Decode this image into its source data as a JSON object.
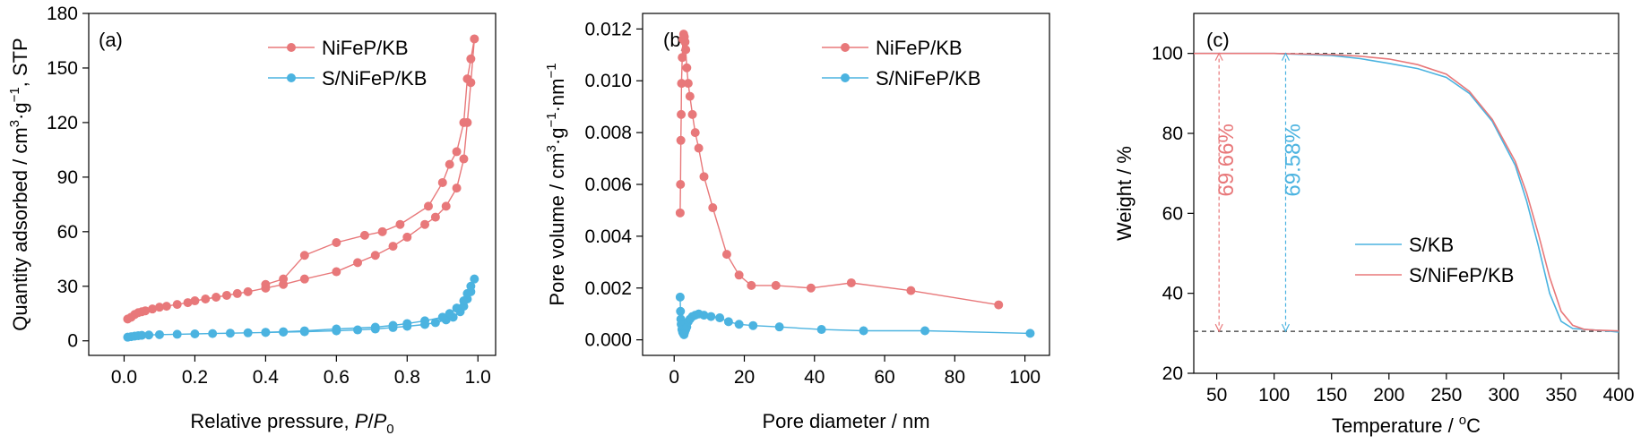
{
  "colors": {
    "red": "#e8787a",
    "blue": "#4bb3e0",
    "dash": "#333333"
  },
  "chart_data": [
    {
      "type": "line",
      "panel_label": "(a)",
      "xlabel": "Relative pressure, P/P0",
      "ylabel": "Quantity adsorbed / cm3·g−1, STP",
      "xlim": [
        -0.1,
        1.05
      ],
      "ylim": [
        -8,
        180
      ],
      "xticks": [
        0.0,
        0.2,
        0.4,
        0.6,
        0.8,
        1.0
      ],
      "xtick_labels": [
        "0.0",
        "0.2",
        "0.4",
        "0.6",
        "0.8",
        "1.0"
      ],
      "yticks": [
        0,
        30,
        60,
        90,
        120,
        150,
        180
      ],
      "ytick_labels": [
        "0",
        "30",
        "60",
        "90",
        "120",
        "150",
        "180"
      ],
      "legend_position": "top-right",
      "series": [
        {
          "name": "NiFeP/KB",
          "color": "#e8787a",
          "x": [
            0.01,
            0.02,
            0.03,
            0.04,
            0.05,
            0.06,
            0.08,
            0.1,
            0.12,
            0.15,
            0.18,
            0.2,
            0.23,
            0.26,
            0.29,
            0.32,
            0.35,
            0.4,
            0.45,
            0.51,
            0.6,
            0.66,
            0.71,
            0.76,
            0.8,
            0.85,
            0.88,
            0.91,
            0.94,
            0.96,
            0.97,
            0.98,
            0.99,
            0.98,
            0.97,
            0.96,
            0.94,
            0.92,
            0.9,
            0.86,
            0.78,
            0.73,
            0.68,
            0.6,
            0.51,
            0.45,
            0.4
          ],
          "y": [
            12,
            13,
            14.5,
            15.5,
            16,
            16.5,
            17.5,
            18.5,
            19,
            20,
            21,
            22,
            23,
            24,
            25,
            26,
            27,
            29,
            31,
            34,
            38,
            43,
            47,
            52,
            57,
            64,
            68,
            74,
            84,
            100,
            120,
            142,
            166,
            155,
            144,
            120,
            104,
            97,
            87,
            74,
            64,
            60,
            58,
            54,
            47,
            34,
            31
          ]
        },
        {
          "name": "S/NiFeP/KB",
          "color": "#4bb3e0",
          "x": [
            0.01,
            0.02,
            0.03,
            0.04,
            0.05,
            0.07,
            0.1,
            0.15,
            0.2,
            0.25,
            0.3,
            0.35,
            0.4,
            0.45,
            0.51,
            0.6,
            0.66,
            0.71,
            0.76,
            0.8,
            0.85,
            0.88,
            0.91,
            0.93,
            0.95,
            0.96,
            0.97,
            0.98,
            0.99,
            0.98,
            0.97,
            0.96,
            0.94,
            0.92,
            0.9,
            0.85,
            0.8,
            0.76,
            0.71,
            0.6,
            0.51,
            0.45,
            0.4
          ],
          "y": [
            2,
            2.3,
            2.6,
            2.8,
            3,
            3.2,
            3.4,
            3.6,
            3.8,
            4,
            4.2,
            4.4,
            4.6,
            4.8,
            5,
            5.5,
            6,
            6.5,
            7.3,
            8,
            9,
            10,
            11.5,
            13,
            16,
            19,
            23,
            27,
            34,
            30,
            26,
            22,
            18,
            15,
            13,
            11,
            9.5,
            8.5,
            7.5,
            6.5,
            5.5,
            5,
            4.7
          ]
        }
      ]
    },
    {
      "type": "line",
      "panel_label": "(b)",
      "xlabel": "Pore diameter / nm",
      "ylabel": "Pore volume / cm3·g−1·nm−1",
      "xlim": [
        -9,
        107
      ],
      "ylim": [
        -0.0006,
        0.0126
      ],
      "xticks": [
        0,
        20,
        40,
        60,
        80,
        100
      ],
      "xtick_labels": [
        "0",
        "20",
        "40",
        "60",
        "80",
        "100"
      ],
      "yticks": [
        0.0,
        0.002,
        0.004,
        0.006,
        0.008,
        0.01,
        0.012
      ],
      "ytick_labels": [
        "0.000",
        "0.002",
        "0.004",
        "0.006",
        "0.008",
        "0.010",
        "0.012"
      ],
      "legend_position": "top-right",
      "series": [
        {
          "name": "NiFeP/KB",
          "color": "#e8787a",
          "x": [
            1.7,
            1.8,
            1.9,
            2.0,
            2.1,
            2.3,
            2.5,
            2.7,
            2.9,
            3.1,
            3.3,
            3.6,
            4.0,
            4.5,
            5.2,
            6.0,
            7.0,
            8.5,
            11.0,
            15.0,
            18.5,
            22.0,
            29.0,
            39.0,
            50.5,
            67.5,
            92.5
          ],
          "y": [
            0.0049,
            0.006,
            0.0077,
            0.0087,
            0.0099,
            0.0109,
            0.0116,
            0.0118,
            0.0117,
            0.0115,
            0.0112,
            0.0105,
            0.0099,
            0.0094,
            0.0087,
            0.008,
            0.0074,
            0.0063,
            0.0051,
            0.0033,
            0.0025,
            0.0021,
            0.0021,
            0.002,
            0.0022,
            0.0019,
            0.00135
          ]
        },
        {
          "name": "S/NiFeP/KB",
          "color": "#4bb3e0",
          "x": [
            1.7,
            1.8,
            1.9,
            2.0,
            2.2,
            2.4,
            2.6,
            2.8,
            3.0,
            3.3,
            3.6,
            4.0,
            4.5,
            5.2,
            6.0,
            7.0,
            8.5,
            10.5,
            13.0,
            15.5,
            18.5,
            22.5,
            30.0,
            42.0,
            54.0,
            71.5,
            101.5
          ],
          "y": [
            0.00165,
            0.0011,
            0.0008,
            0.0006,
            0.0004,
            0.0003,
            0.00025,
            0.0002,
            0.0003,
            0.0004,
            0.0005,
            0.0007,
            0.0008,
            0.0009,
            0.00095,
            0.001,
            0.00095,
            0.0009,
            0.00085,
            0.0007,
            0.0006,
            0.00055,
            0.0005,
            0.0004,
            0.00035,
            0.00035,
            0.00025
          ]
        }
      ]
    },
    {
      "type": "line",
      "panel_label": "(c)",
      "xlabel": "Temperature / oC",
      "ylabel": "Weight / %",
      "xlim": [
        30,
        400
      ],
      "ylim": [
        20,
        110
      ],
      "xticks": [
        50,
        100,
        150,
        200,
        250,
        300,
        350,
        400
      ],
      "xtick_labels": [
        "50",
        "100",
        "150",
        "200",
        "250",
        "300",
        "350",
        "400"
      ],
      "yticks": [
        20,
        40,
        60,
        80,
        100
      ],
      "ytick_labels": [
        "20",
        "40",
        "60",
        "80",
        "100"
      ],
      "legend_position": "center-right",
      "reference_lines": [
        100,
        30.5
      ],
      "annotations": [
        {
          "text": "69.66%",
          "x": 52,
          "color": "#e8787a"
        },
        {
          "text": "69.58%",
          "x": 110,
          "color": "#4bb3e0"
        }
      ],
      "series": [
        {
          "name": "S/KB",
          "color": "#4bb3e0",
          "x": [
            30,
            100,
            150,
            175,
            200,
            225,
            250,
            270,
            290,
            310,
            320,
            330,
            340,
            350,
            360,
            370,
            380,
            390,
            400
          ],
          "y": [
            100,
            100,
            99.5,
            98.7,
            97.5,
            96.2,
            94.0,
            90.0,
            83.0,
            72.0,
            63.0,
            52.0,
            40.0,
            33.0,
            31.2,
            31.0,
            30.8,
            30.6,
            30.3
          ]
        },
        {
          "name": "S/NiFeP/KB",
          "color": "#e8787a",
          "x": [
            30,
            100,
            150,
            175,
            200,
            225,
            250,
            270,
            290,
            310,
            320,
            330,
            340,
            350,
            360,
            370,
            380,
            390,
            400
          ],
          "y": [
            100,
            100,
            99.7,
            99.3,
            98.6,
            97.2,
            94.8,
            90.5,
            83.5,
            73.0,
            65.0,
            55.0,
            44.0,
            35.5,
            32.0,
            31.0,
            30.8,
            30.7,
            30.6
          ]
        }
      ]
    }
  ]
}
